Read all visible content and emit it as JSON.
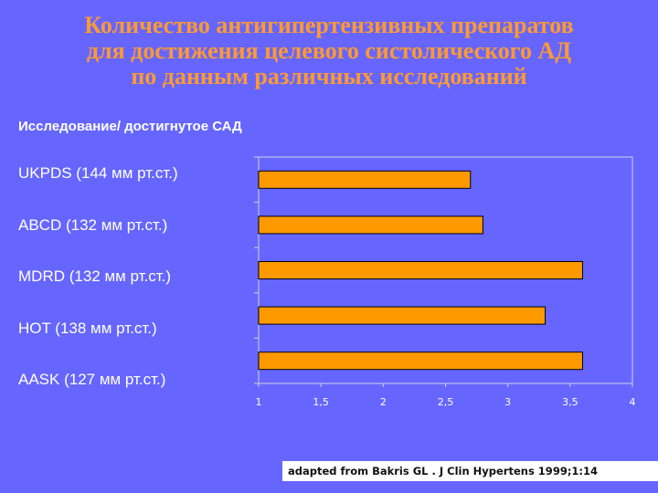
{
  "title_lines": [
    "Количество антигипертензивных препаратов",
    "для достижения целевого систолического АД",
    "по данным различных исследований"
  ],
  "subtitle": "Исследование/ достигнутое САД",
  "citation": "adapted from Bakris GL . J Clin Hypertens 1999;1:14",
  "colors": {
    "background": "#6666ff",
    "title": "#ff9933",
    "bar_fill": "#ff9900",
    "bar_stroke": "#000000",
    "plot_border": "#d0d0e0"
  },
  "chart_data": {
    "type": "bar",
    "orientation": "horizontal",
    "categories": [
      "UKPDS (144 мм рт.ст.)",
      "ABCD (132 мм рт.ст.)",
      "MDRD (132 мм рт.ст.)",
      "HOT (138 мм рт.ст.)",
      "AASK (127 мм рт.ст.)"
    ],
    "values": [
      2.7,
      2.8,
      3.6,
      3.3,
      3.6
    ],
    "xlim": [
      1,
      4
    ],
    "xticks": [
      "1",
      "1,5",
      "2",
      "2,5",
      "3",
      "3,5",
      "4"
    ],
    "grid": false,
    "title": "",
    "xlabel": "",
    "ylabel": ""
  }
}
